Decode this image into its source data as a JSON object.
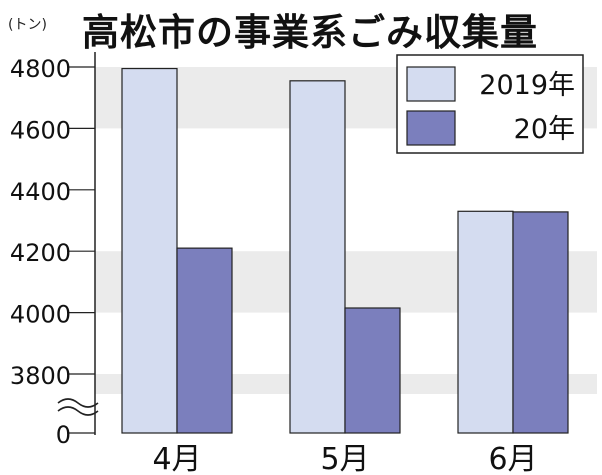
{
  "chart_data": {
    "type": "bar",
    "title": "高松市の事業系ごみ収集量",
    "unit_label": "(トン)",
    "categories": [
      "4月",
      "5月",
      "6月"
    ],
    "series": [
      {
        "name": "2019年",
        "values": [
          4795,
          4755,
          4330
        ],
        "color": "#d4dcf0"
      },
      {
        "name": "20年",
        "values": [
          4210,
          4015,
          4328
        ],
        "color": "#7b7fbd"
      }
    ],
    "y_ticks": [
      "4800",
      "4600",
      "4400",
      "4200",
      "4000",
      "3800",
      "0"
    ],
    "ylim": [
      3800,
      4850
    ],
    "axis_break": true,
    "grid": "alternating-bands",
    "legend": "top-right"
  }
}
